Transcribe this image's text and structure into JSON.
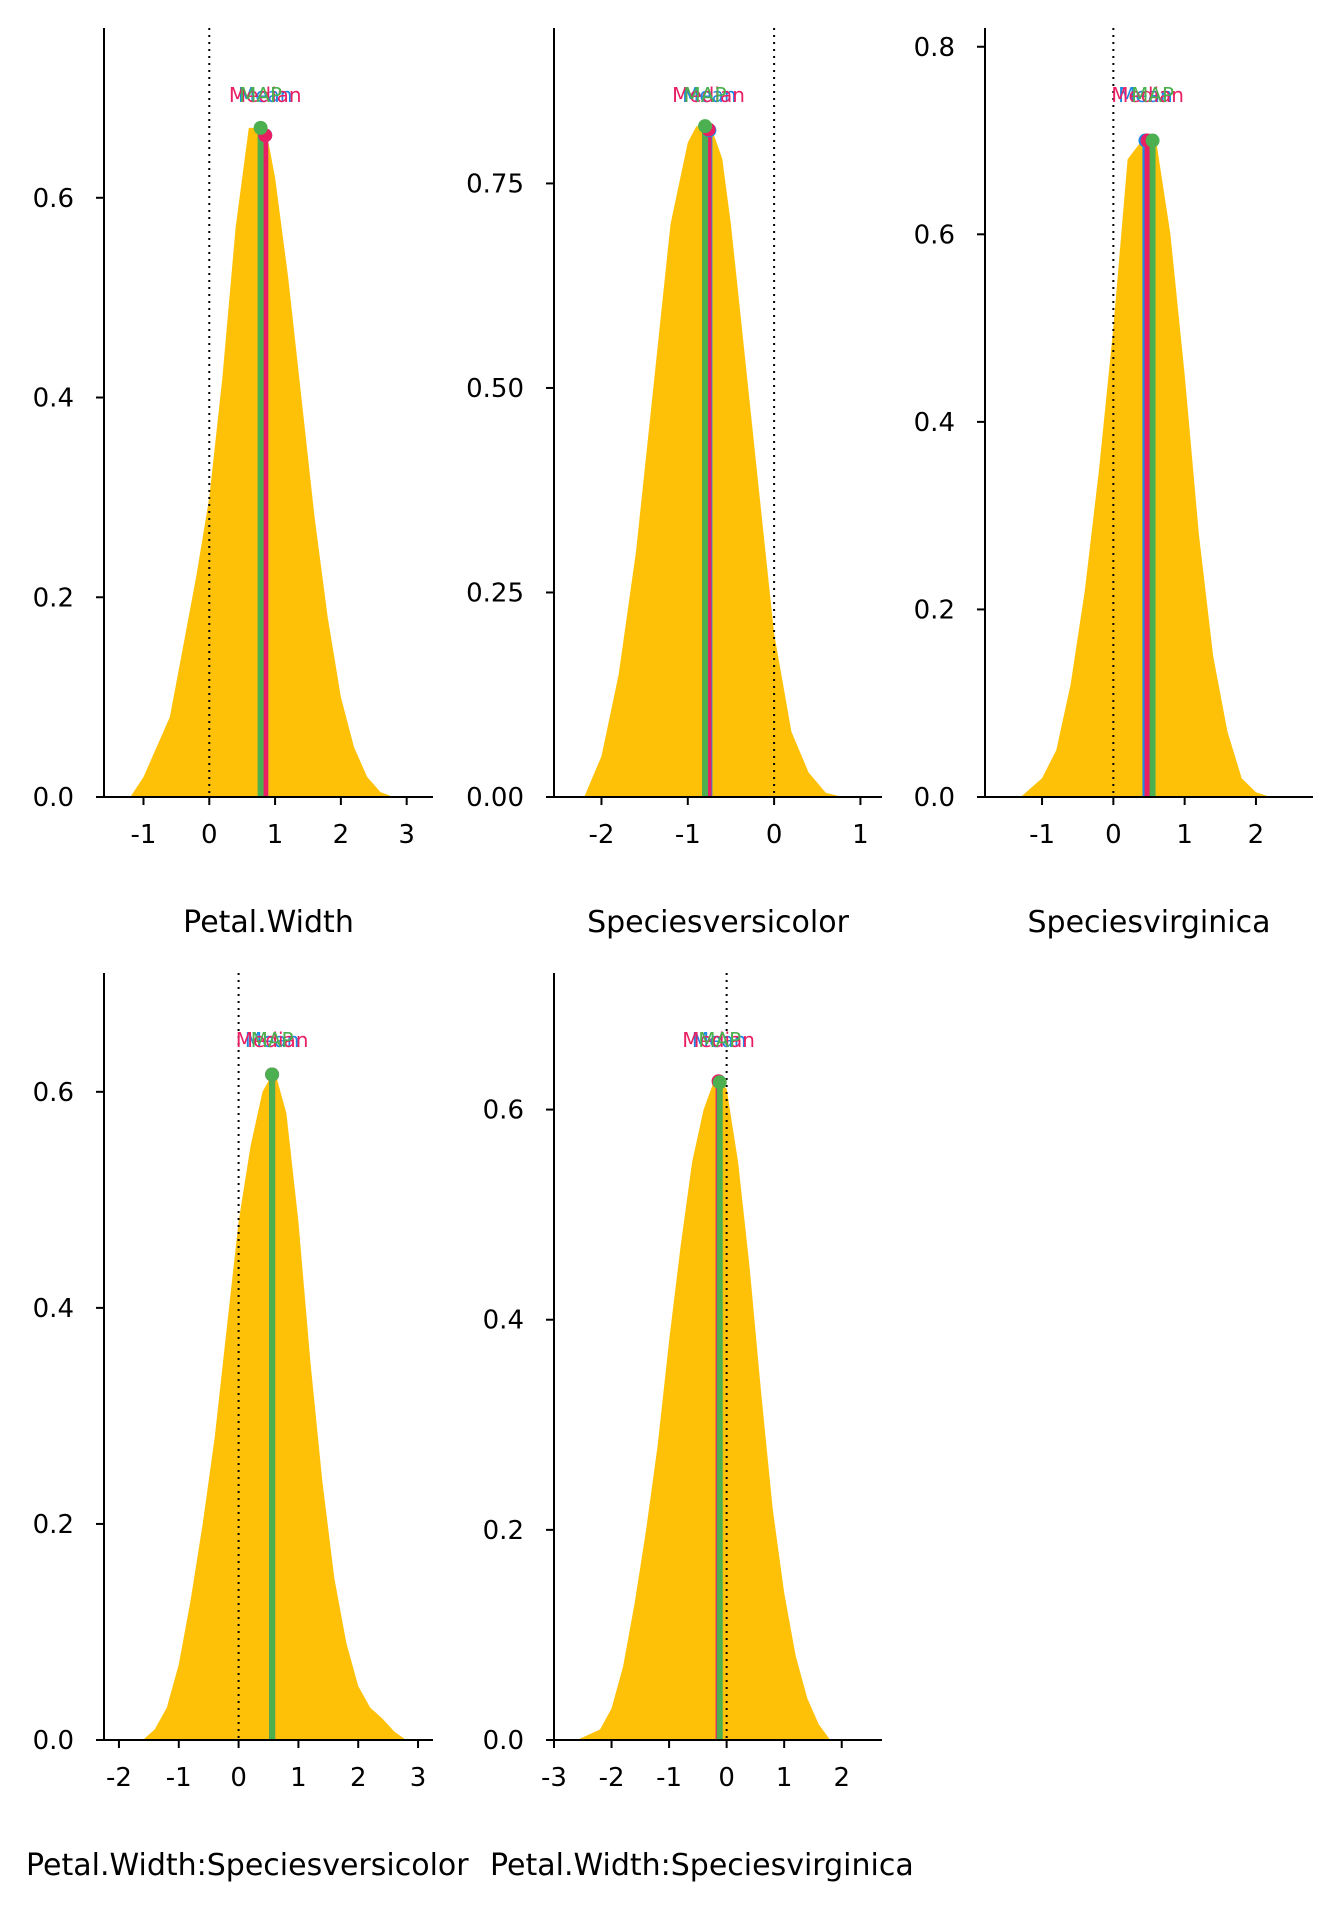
{
  "colors": {
    "density_fill": "#FFC107",
    "mean": "#1E88E5",
    "median": "#E91E63",
    "map": "#4CAF50",
    "zero_line": "#000000",
    "axis": "#000000"
  },
  "chart_data": [
    {
      "type": "area",
      "xlabel": "Petal.Width",
      "xlim": [
        -1.6,
        3.4
      ],
      "ylim": [
        0,
        0.77
      ],
      "xticks": [
        "-1",
        "0",
        "1",
        "2",
        "3"
      ],
      "xtick_values": [
        -1,
        0,
        1,
        2,
        3
      ],
      "yticks": [
        "0.0",
        "0.2",
        "0.4",
        "0.6"
      ],
      "ytick_values": [
        0,
        0.2,
        0.4,
        0.6
      ],
      "density_x": [
        -1.2,
        -1.0,
        -0.8,
        -0.6,
        -0.4,
        -0.2,
        0.0,
        0.2,
        0.4,
        0.6,
        0.8,
        0.9,
        1.0,
        1.2,
        1.4,
        1.6,
        1.8,
        2.0,
        2.2,
        2.4,
        2.6,
        2.8
      ],
      "density_y": [
        0.0,
        0.02,
        0.05,
        0.08,
        0.15,
        0.22,
        0.3,
        0.42,
        0.57,
        0.67,
        0.67,
        0.655,
        0.62,
        0.52,
        0.4,
        0.28,
        0.18,
        0.1,
        0.05,
        0.02,
        0.005,
        0.0
      ],
      "mean": 0.85,
      "median": 0.85,
      "map": 0.78,
      "mean_label": "Mean",
      "median_label": "Median",
      "map_label": "MAP"
    },
    {
      "type": "area",
      "xlabel": "Speciesversicolor",
      "xlim": [
        -2.55,
        1.25
      ],
      "ylim": [
        0,
        0.94
      ],
      "xticks": [
        "-2",
        "-1",
        "0",
        "1"
      ],
      "xtick_values": [
        -2,
        -1,
        0,
        1
      ],
      "yticks": [
        "0.00",
        "0.25",
        "0.50",
        "0.75"
      ],
      "ytick_values": [
        0,
        0.25,
        0.5,
        0.75
      ],
      "density_x": [
        -2.2,
        -2.0,
        -1.8,
        -1.6,
        -1.4,
        -1.2,
        -1.0,
        -0.9,
        -0.8,
        -0.7,
        -0.6,
        -0.5,
        -0.4,
        -0.2,
        0.0,
        0.2,
        0.4,
        0.6,
        0.8
      ],
      "density_y": [
        0.0,
        0.05,
        0.15,
        0.3,
        0.5,
        0.7,
        0.8,
        0.82,
        0.82,
        0.81,
        0.78,
        0.7,
        0.6,
        0.4,
        0.2,
        0.08,
        0.03,
        0.005,
        0.0
      ],
      "mean": -0.75,
      "median": -0.76,
      "map": -0.8,
      "mean_label": "Mean",
      "median_label": "Median",
      "map_label": "MAP"
    },
    {
      "type": "area",
      "xlabel": "Speciesvirginica",
      "xlim": [
        -1.8,
        2.8
      ],
      "ylim": [
        0,
        0.82
      ],
      "xticks": [
        "-1",
        "0",
        "1",
        "2"
      ],
      "xtick_values": [
        -1,
        0,
        1,
        2
      ],
      "yticks": [
        "0.0",
        "0.2",
        "0.4",
        "0.6",
        "0.8"
      ],
      "ytick_values": [
        0,
        0.2,
        0.4,
        0.6,
        0.8
      ],
      "density_x": [
        -1.3,
        -1.0,
        -0.8,
        -0.6,
        -0.4,
        -0.2,
        0.0,
        0.2,
        0.4,
        0.6,
        0.8,
        1.0,
        1.2,
        1.4,
        1.6,
        1.8,
        2.0,
        2.2
      ],
      "density_y": [
        0.0,
        0.02,
        0.05,
        0.12,
        0.22,
        0.35,
        0.5,
        0.68,
        0.7,
        0.7,
        0.6,
        0.45,
        0.28,
        0.15,
        0.07,
        0.02,
        0.005,
        0.0
      ],
      "mean": 0.45,
      "median": 0.48,
      "map": 0.55,
      "mean_label": "Mean",
      "median_label": "Median",
      "map_label": "MAP"
    },
    {
      "type": "area",
      "xlabel": "Petal.Width:Speciesversicolor",
      "xlim": [
        -2.25,
        3.25
      ],
      "ylim": [
        0,
        0.71
      ],
      "xticks": [
        "-2",
        "-1",
        "0",
        "1",
        "2",
        "3"
      ],
      "xtick_values": [
        -2,
        -1,
        0,
        1,
        2,
        3
      ],
      "yticks": [
        "0.0",
        "0.2",
        "0.4",
        "0.6"
      ],
      "ytick_values": [
        0,
        0.2,
        0.4,
        0.6
      ],
      "density_x": [
        -1.6,
        -1.4,
        -1.2,
        -1.0,
        -0.8,
        -0.6,
        -0.4,
        -0.2,
        0.0,
        0.2,
        0.4,
        0.6,
        0.8,
        1.0,
        1.2,
        1.4,
        1.6,
        1.8,
        2.0,
        2.2,
        2.4,
        2.6,
        2.8
      ],
      "density_y": [
        0.0,
        0.01,
        0.03,
        0.07,
        0.13,
        0.2,
        0.28,
        0.38,
        0.48,
        0.55,
        0.6,
        0.62,
        0.58,
        0.48,
        0.35,
        0.24,
        0.15,
        0.09,
        0.05,
        0.03,
        0.02,
        0.008,
        0.0
      ],
      "mean": 0.56,
      "median": 0.56,
      "map": 0.56,
      "mean_label": "Mean",
      "median_label": "Median",
      "map_label": "MAP"
    },
    {
      "type": "area",
      "xlabel": "Petal.Width:Speciesvirginica",
      "xlim": [
        -3.0,
        2.7
      ],
      "ylim": [
        0,
        0.73
      ],
      "xticks": [
        "-3",
        "-2",
        "-1",
        "0",
        "1",
        "2"
      ],
      "xtick_values": [
        -3,
        -2,
        -1,
        0,
        1,
        2
      ],
      "yticks": [
        "0.0",
        "0.2",
        "0.4",
        "0.6"
      ],
      "ytick_values": [
        0,
        0.2,
        0.4,
        0.6
      ],
      "density_x": [
        -2.6,
        -2.4,
        -2.2,
        -2.0,
        -1.8,
        -1.6,
        -1.4,
        -1.2,
        -1.0,
        -0.8,
        -0.6,
        -0.4,
        -0.2,
        0.0,
        0.2,
        0.4,
        0.6,
        0.8,
        1.0,
        1.2,
        1.4,
        1.6,
        1.8
      ],
      "density_y": [
        0.0,
        0.005,
        0.01,
        0.03,
        0.07,
        0.13,
        0.2,
        0.28,
        0.38,
        0.47,
        0.55,
        0.6,
        0.63,
        0.62,
        0.55,
        0.45,
        0.33,
        0.22,
        0.14,
        0.08,
        0.04,
        0.015,
        0.0
      ],
      "mean": -0.13,
      "median": -0.14,
      "map": -0.12,
      "mean_label": "Mean",
      "median_label": "Median",
      "map_label": "MAP"
    }
  ]
}
